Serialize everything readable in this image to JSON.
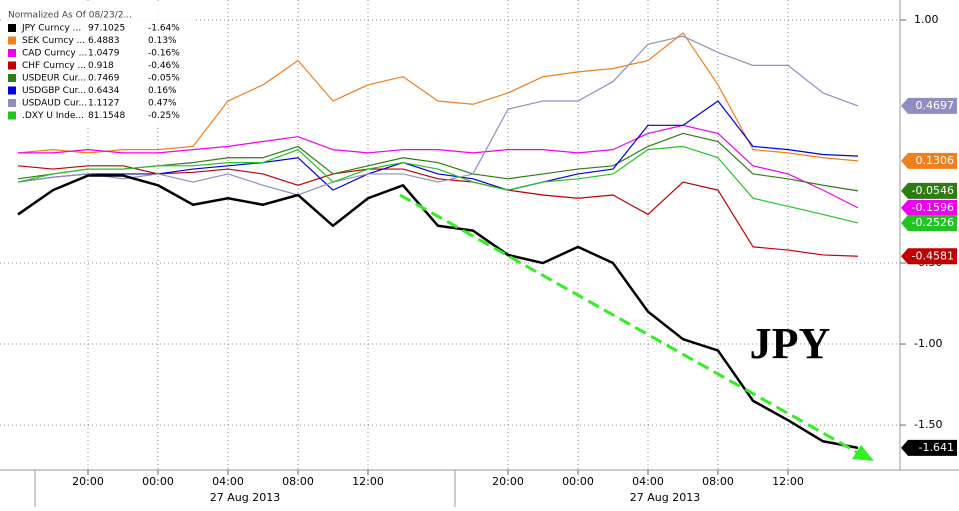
{
  "chart_data": {
    "type": "line",
    "legend_title": "Normalized As Of 08/23/2...",
    "categories": [
      null,
      null,
      "20:00",
      null,
      "00:00",
      null,
      "04:00",
      null,
      "08:00",
      null,
      "12:00",
      null,
      null,
      null,
      "20:00",
      null,
      "00:00",
      null,
      "04:00",
      null,
      "08:00",
      null,
      "12:00",
      null,
      null
    ],
    "x_dates": [
      "27 Aug 2013",
      "27 Aug 2013"
    ],
    "ylim": [
      -1.765,
      1.105
    ],
    "yticks": [
      {
        "value": 1,
        "label": "1.00"
      },
      {
        "value": -0.5,
        "label": "-0.50"
      },
      {
        "value": -1,
        "label": "-1.00"
      },
      {
        "value": -1.5,
        "label": "-1.50"
      }
    ],
    "annotation": "JPY",
    "series": [
      {
        "name": "JPY Curncy ...",
        "color": "#000000",
        "last": 97.1025,
        "change": "-1.64%",
        "end_label": -1.641,
        "values": [
          -0.2,
          -0.05,
          0.04,
          0.04,
          -0.02,
          -0.14,
          -0.1,
          -0.14,
          -0.08,
          -0.27,
          -0.1,
          -0.02,
          -0.27,
          -0.3,
          -0.45,
          -0.5,
          -0.4,
          -0.5,
          -0.8,
          -0.97,
          -1.04,
          -1.35,
          -1.47,
          -1.6,
          -1.641
        ]
      },
      {
        "name": "SEK Curncy ...",
        "color": "#f07f1e",
        "last": 6.4883,
        "change": "0.13%",
        "end_label": 0.1306,
        "values": [
          0.18,
          0.2,
          0.18,
          0.2,
          0.2,
          0.22,
          0.5,
          0.6,
          0.75,
          0.5,
          0.6,
          0.65,
          0.5,
          0.48,
          0.55,
          0.65,
          0.68,
          0.7,
          0.75,
          0.92,
          0.6,
          0.2,
          0.18,
          0.15,
          0.1306
        ]
      },
      {
        "name": "CAD Curncy ...",
        "color": "#f000f0",
        "last": 1.0479,
        "change": "-0.16%",
        "end_label": -0.1596,
        "values": [
          0.18,
          0.18,
          0.2,
          0.18,
          0.18,
          0.2,
          0.22,
          0.25,
          0.28,
          0.2,
          0.18,
          0.2,
          0.2,
          0.18,
          0.2,
          0.2,
          0.18,
          0.2,
          0.3,
          0.35,
          0.3,
          0.1,
          0.05,
          -0.05,
          -0.1596
        ]
      },
      {
        "name": "CHF Curncy ...",
        "color": "#c00000",
        "last": 0.918,
        "change": "-0.46%",
        "end_label": -0.4581,
        "values": [
          0.1,
          0.08,
          0.1,
          0.1,
          0.05,
          0.06,
          0.08,
          0.05,
          -0.02,
          0.05,
          0.08,
          0.08,
          0.02,
          0.0,
          -0.05,
          -0.08,
          -0.1,
          -0.08,
          -0.2,
          0.0,
          -0.05,
          -0.4,
          -0.42,
          -0.45,
          -0.4581
        ]
      },
      {
        "name": "USDEUR Cur...",
        "color": "#2e7d12",
        "last": 0.7469,
        "change": "-0.05%",
        "end_label": -0.0546,
        "values": [
          0.02,
          0.05,
          0.08,
          0.08,
          0.1,
          0.12,
          0.15,
          0.15,
          0.22,
          0.05,
          0.1,
          0.15,
          0.12,
          0.05,
          0.02,
          0.05,
          0.08,
          0.1,
          0.22,
          0.3,
          0.25,
          0.05,
          0.02,
          -0.02,
          -0.0546
        ]
      },
      {
        "name": "USDGBP Cur...",
        "color": "#0000e0",
        "last": 0.6434,
        "change": "0.16%",
        "values": [
          0.0,
          0.03,
          0.05,
          0.05,
          0.05,
          0.08,
          0.1,
          0.12,
          0.15,
          -0.05,
          0.05,
          0.12,
          0.05,
          0.02,
          -0.05,
          0.0,
          0.05,
          0.08,
          0.35,
          0.35,
          0.5,
          0.22,
          0.2,
          0.17,
          0.16
        ]
      },
      {
        "name": "USDAUD Cur...",
        "color": "#8f8fbf",
        "last": 1.1127,
        "change": "0.47%",
        "end_label": 0.4697,
        "values": [
          0.0,
          0.03,
          0.05,
          0.02,
          0.05,
          0.0,
          0.05,
          -0.02,
          -0.08,
          0.0,
          0.05,
          0.05,
          0.0,
          0.05,
          0.45,
          0.5,
          0.5,
          0.62,
          0.85,
          0.9,
          0.8,
          0.72,
          0.72,
          0.55,
          0.4697
        ]
      },
      {
        "name": ".DXY U Inde...",
        "color": "#22c422",
        "last": 81.1548,
        "change": "-0.25%",
        "end_label": -0.2526,
        "values": [
          0.0,
          0.05,
          0.08,
          0.08,
          0.1,
          0.1,
          0.12,
          0.12,
          0.2,
          0.0,
          0.08,
          0.12,
          0.08,
          0.0,
          -0.05,
          0.0,
          0.02,
          0.05,
          0.2,
          0.22,
          0.15,
          -0.1,
          -0.15,
          -0.2,
          -0.2526
        ]
      }
    ]
  }
}
